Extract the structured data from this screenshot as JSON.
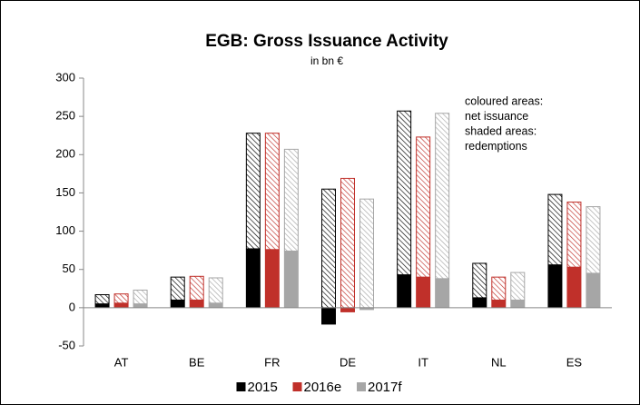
{
  "chart_data": {
    "type": "bar",
    "title": "EGB: Gross Issuance Activity",
    "subtitle": "in bn €",
    "annotation": [
      "coloured areas:",
      "net issuance",
      "shaded areas:",
      "redemptions"
    ],
    "categories": [
      "AT",
      "BE",
      "FR",
      "DE",
      "IT",
      "NL",
      "ES"
    ],
    "series": [
      {
        "name": "2015",
        "color": "#000000",
        "net": [
          5,
          10,
          77,
          -22,
          43,
          13,
          56
        ],
        "redemptions": [
          12,
          30,
          151,
          155,
          214,
          45,
          92
        ]
      },
      {
        "name": "2016e",
        "color": "#c0302a",
        "net": [
          6,
          10,
          76,
          -6,
          40,
          10,
          53
        ],
        "redemptions": [
          12,
          31,
          152,
          169,
          183,
          30,
          85
        ]
      },
      {
        "name": "2017f",
        "color": "#a6a6a6",
        "net": [
          5,
          6,
          74,
          -3,
          38,
          10,
          45
        ],
        "redemptions": [
          18,
          33,
          133,
          142,
          216,
          36,
          87
        ]
      }
    ],
    "ylim": [
      -50,
      300
    ],
    "yticks": [
      -50,
      0,
      50,
      100,
      150,
      200,
      250,
      300
    ],
    "grid": false,
    "legend": "bottom"
  }
}
